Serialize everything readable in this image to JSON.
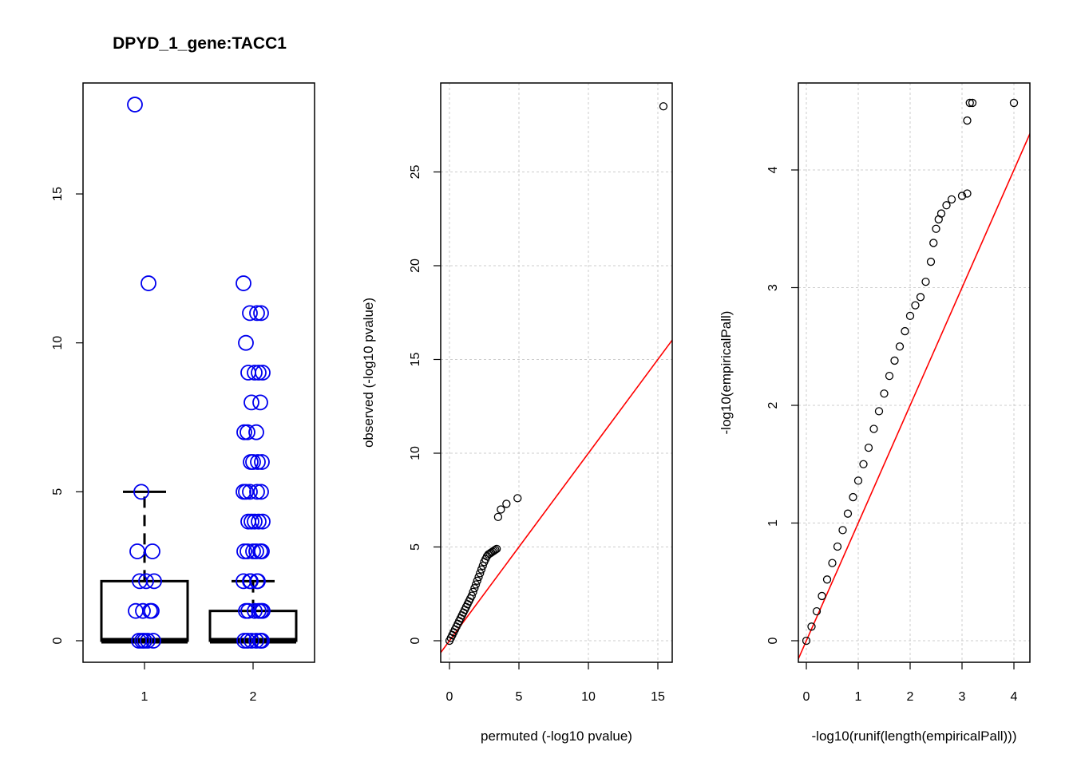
{
  "chart_data": [
    {
      "type": "boxplot",
      "title": "DPYD_1_gene:TACC1",
      "xlabel": "",
      "ylabel": "",
      "categories": [
        "1",
        "2"
      ],
      "ylim": [
        0,
        18
      ],
      "yticks": [
        "0",
        "5",
        "10",
        "15"
      ],
      "boxes": [
        {
          "category": "1",
          "min": 0,
          "q1": 0,
          "median": 0,
          "q3": 2,
          "max": 5
        },
        {
          "category": "2",
          "min": 0,
          "q1": 0,
          "median": 0,
          "q3": 1,
          "max": 2
        }
      ],
      "points_color": "#0000ee",
      "points": [
        {
          "category": "1",
          "values": [
            18,
            12,
            5,
            3,
            3,
            2,
            2,
            2,
            1,
            1,
            1,
            1,
            0,
            0,
            0,
            0,
            0
          ]
        },
        {
          "category": "2",
          "values": [
            12,
            11,
            11,
            11,
            10,
            9,
            9,
            9,
            9,
            8,
            8,
            7,
            7,
            7,
            6,
            6,
            6,
            6,
            5,
            5,
            5,
            5,
            5,
            4,
            4,
            4,
            4,
            4,
            3,
            3,
            3,
            3,
            3,
            3,
            2,
            2,
            2,
            2,
            2,
            1,
            1,
            1,
            1,
            1,
            1,
            0,
            0,
            0,
            0,
            0,
            0
          ]
        }
      ]
    },
    {
      "type": "scatter",
      "title": "",
      "xlabel": "permuted (-log10 pvalue)",
      "ylabel": "observed (-log10 pvalue)",
      "xlim": [
        0,
        15.5
      ],
      "ylim": [
        0,
        28.5
      ],
      "xticks": [
        "0",
        "5",
        "10",
        "15"
      ],
      "yticks": [
        "0",
        "5",
        "10",
        "15",
        "20",
        "25"
      ],
      "grid": true,
      "reference_line": {
        "slope": 1,
        "intercept": 0,
        "color": "#ff0000"
      },
      "points": [
        [
          0,
          0
        ],
        [
          0.1,
          0.15
        ],
        [
          0.2,
          0.3
        ],
        [
          0.3,
          0.45
        ],
        [
          0.4,
          0.6
        ],
        [
          0.5,
          0.75
        ],
        [
          0.6,
          0.9
        ],
        [
          0.7,
          1.05
        ],
        [
          0.8,
          1.2
        ],
        [
          0.9,
          1.35
        ],
        [
          1.0,
          1.5
        ],
        [
          1.1,
          1.65
        ],
        [
          1.2,
          1.8
        ],
        [
          1.3,
          1.95
        ],
        [
          1.4,
          2.1
        ],
        [
          1.5,
          2.25
        ],
        [
          1.6,
          2.4
        ],
        [
          1.7,
          2.6
        ],
        [
          1.8,
          2.8
        ],
        [
          1.9,
          3.0
        ],
        [
          2.0,
          3.2
        ],
        [
          2.1,
          3.4
        ],
        [
          2.2,
          3.6
        ],
        [
          2.3,
          3.8
        ],
        [
          2.4,
          4.0
        ],
        [
          2.5,
          4.2
        ],
        [
          2.6,
          4.35
        ],
        [
          2.7,
          4.5
        ],
        [
          2.8,
          4.6
        ],
        [
          2.9,
          4.65
        ],
        [
          3.0,
          4.7
        ],
        [
          3.1,
          4.75
        ],
        [
          3.2,
          4.8
        ],
        [
          3.3,
          4.85
        ],
        [
          3.4,
          4.9
        ],
        [
          3.5,
          6.6
        ],
        [
          3.7,
          7.0
        ],
        [
          4.1,
          7.3
        ],
        [
          4.9,
          7.6
        ],
        [
          15.4,
          28.5
        ]
      ]
    },
    {
      "type": "scatter",
      "title": "",
      "xlabel": "-log10(runif(length(empiricalPall)))",
      "ylabel": "-log10(empiricalPall)",
      "xlim": [
        0,
        4.05
      ],
      "ylim": [
        0,
        4.57
      ],
      "xticks": [
        "0",
        "1",
        "2",
        "3",
        "4"
      ],
      "yticks": [
        "0",
        "1",
        "2",
        "3",
        "4"
      ],
      "grid": true,
      "reference_line": {
        "slope": 1,
        "intercept": 0,
        "color": "#ff0000"
      },
      "points": [
        [
          0,
          0
        ],
        [
          0.1,
          0.12
        ],
        [
          0.2,
          0.25
        ],
        [
          0.3,
          0.38
        ],
        [
          0.4,
          0.52
        ],
        [
          0.5,
          0.66
        ],
        [
          0.6,
          0.8
        ],
        [
          0.7,
          0.94
        ],
        [
          0.8,
          1.08
        ],
        [
          0.9,
          1.22
        ],
        [
          1.0,
          1.36
        ],
        [
          1.1,
          1.5
        ],
        [
          1.2,
          1.64
        ],
        [
          1.3,
          1.8
        ],
        [
          1.4,
          1.95
        ],
        [
          1.5,
          2.1
        ],
        [
          1.6,
          2.25
        ],
        [
          1.7,
          2.38
        ],
        [
          1.8,
          2.5
        ],
        [
          1.9,
          2.63
        ],
        [
          2.0,
          2.76
        ],
        [
          2.1,
          2.85
        ],
        [
          2.2,
          2.92
        ],
        [
          2.3,
          3.05
        ],
        [
          2.4,
          3.22
        ],
        [
          2.45,
          3.38
        ],
        [
          2.5,
          3.5
        ],
        [
          2.55,
          3.58
        ],
        [
          2.6,
          3.63
        ],
        [
          2.7,
          3.7
        ],
        [
          2.8,
          3.75
        ],
        [
          3.0,
          3.78
        ],
        [
          3.1,
          3.8
        ],
        [
          3.1,
          4.42
        ],
        [
          3.15,
          4.57
        ],
        [
          3.2,
          4.57
        ],
        [
          4.0,
          4.57
        ]
      ]
    }
  ]
}
